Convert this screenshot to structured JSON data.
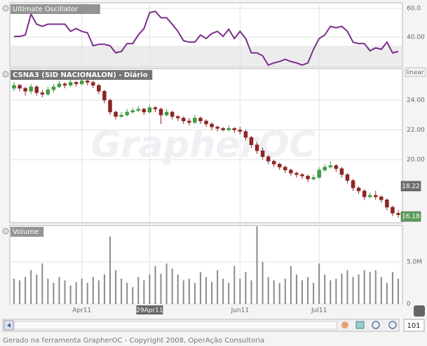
{
  "chart_data": [
    {
      "type": "line",
      "title": "Ultimate Oscillator",
      "color": "#7b2d8b",
      "ylim": [
        19.5,
        63.9
      ],
      "yticks": [
        {
          "value": 60,
          "label": "60.0"
        },
        {
          "value": 40,
          "label": "40.00"
        }
      ],
      "band": [
        19.5,
        34
      ],
      "grid": true,
      "values": [
        40.5,
        40.5,
        41.5,
        56,
        49,
        47.5,
        49,
        49,
        49,
        49,
        44,
        46,
        44,
        43,
        34,
        35,
        35,
        34,
        29,
        30,
        35.5,
        35.5,
        41.5,
        46,
        57,
        58,
        53.5,
        53.5,
        49,
        44,
        37.5,
        36.5,
        36.5,
        41.5,
        39,
        42.5,
        44,
        40.5,
        45.5,
        39,
        44,
        39,
        29,
        29,
        27,
        20.5,
        22,
        23,
        24.5,
        23,
        22,
        20.5,
        22,
        31.5,
        39,
        41.5,
        47.5,
        46.5,
        47.5,
        44,
        36.5,
        35.5,
        35.5,
        30.5,
        32.5,
        31.5,
        36.5,
        29,
        30
      ]
    },
    {
      "type": "candlestick",
      "title": "CSNA3 (SID NACIONALON) - Diário",
      "scale": "linear",
      "watermark": "GrapherOC",
      "up_color": "#3f9a3f",
      "down_color": "#8e2424",
      "ylim": [
        15.76,
        26.12
      ],
      "yticks": [
        {
          "value": 24,
          "label": "24.00"
        },
        {
          "value": 22,
          "label": "22.00"
        },
        {
          "value": 20,
          "label": "20.00"
        }
      ],
      "grid": true,
      "markers": [
        {
          "value": 18.22,
          "label": "18.22",
          "color": "#6e6e6e"
        },
        {
          "value": 16.18,
          "label": "16.18",
          "color": "#5a9e5a"
        }
      ],
      "candles": [
        [
          24.8,
          25.2,
          24.6,
          25.0
        ],
        [
          25.0,
          25.1,
          24.6,
          24.8
        ],
        [
          24.8,
          24.9,
          24.3,
          24.6
        ],
        [
          24.6,
          25.1,
          24.4,
          24.9
        ],
        [
          24.9,
          25.0,
          24.3,
          24.5
        ],
        [
          24.5,
          24.7,
          24.2,
          24.4
        ],
        [
          24.4,
          24.9,
          24.3,
          24.7
        ],
        [
          24.7,
          25.1,
          24.5,
          24.9
        ],
        [
          24.9,
          25.3,
          24.8,
          25.1
        ],
        [
          25.1,
          25.2,
          24.8,
          25.0
        ],
        [
          25.0,
          25.4,
          24.9,
          25.2
        ],
        [
          25.2,
          25.3,
          24.9,
          25.1
        ],
        [
          25.1,
          25.5,
          25.0,
          25.3
        ],
        [
          25.3,
          25.4,
          25.0,
          25.2
        ],
        [
          25.2,
          25.3,
          24.8,
          25.0
        ],
        [
          25.0,
          25.1,
          24.4,
          24.6
        ],
        [
          24.6,
          24.7,
          23.8,
          24.0
        ],
        [
          24.0,
          24.1,
          23.0,
          23.2
        ],
        [
          23.2,
          23.3,
          22.7,
          22.9
        ],
        [
          22.9,
          23.2,
          22.8,
          23.0
        ],
        [
          23.0,
          23.4,
          22.9,
          23.2
        ],
        [
          23.2,
          23.5,
          23.1,
          23.3
        ],
        [
          23.3,
          23.6,
          23.2,
          23.4
        ],
        [
          23.4,
          23.5,
          23.0,
          23.2
        ],
        [
          23.2,
          23.7,
          23.1,
          23.5
        ],
        [
          23.5,
          23.6,
          23.2,
          23.4
        ],
        [
          23.4,
          23.5,
          22.4,
          23.0
        ],
        [
          23.0,
          23.4,
          22.9,
          23.2
        ],
        [
          23.2,
          23.3,
          22.7,
          22.9
        ],
        [
          22.9,
          23.0,
          22.6,
          22.8
        ],
        [
          22.8,
          22.9,
          22.4,
          22.6
        ],
        [
          22.6,
          22.8,
          22.3,
          22.5
        ],
        [
          22.5,
          23.0,
          22.4,
          22.8
        ],
        [
          22.8,
          22.9,
          22.4,
          22.6
        ],
        [
          22.6,
          22.7,
          22.2,
          22.4
        ],
        [
          22.4,
          22.5,
          22.0,
          22.2
        ],
        [
          22.2,
          22.3,
          21.9,
          22.1
        ],
        [
          22.1,
          22.2,
          21.9,
          22.0
        ],
        [
          22.0,
          22.3,
          21.9,
          22.1
        ],
        [
          22.1,
          22.2,
          21.8,
          22.0
        ],
        [
          22.0,
          22.2,
          21.7,
          21.9
        ],
        [
          21.9,
          22.0,
          21.3,
          21.5
        ],
        [
          21.5,
          21.6,
          20.8,
          21.0
        ],
        [
          21.0,
          21.2,
          20.4,
          20.6
        ],
        [
          20.6,
          20.8,
          20.0,
          20.2
        ],
        [
          20.2,
          20.3,
          19.7,
          19.9
        ],
        [
          19.9,
          20.0,
          19.5,
          19.7
        ],
        [
          19.7,
          19.8,
          19.3,
          19.5
        ],
        [
          19.5,
          19.6,
          19.1,
          19.3
        ],
        [
          19.3,
          19.4,
          18.9,
          19.1
        ],
        [
          19.1,
          19.2,
          18.8,
          19.0
        ],
        [
          19.0,
          19.1,
          18.7,
          18.9
        ],
        [
          18.9,
          19.0,
          18.5,
          18.7
        ],
        [
          18.7,
          19.0,
          18.6,
          18.8
        ],
        [
          18.8,
          19.5,
          18.7,
          19.3
        ],
        [
          19.3,
          19.7,
          19.2,
          19.5
        ],
        [
          19.5,
          19.9,
          19.4,
          19.6
        ],
        [
          19.6,
          19.7,
          19.2,
          19.4
        ],
        [
          19.4,
          19.5,
          18.8,
          19.0
        ],
        [
          19.0,
          19.1,
          18.4,
          18.6
        ],
        [
          18.6,
          18.7,
          17.9,
          18.1
        ],
        [
          18.1,
          18.2,
          17.7,
          17.9
        ],
        [
          17.9,
          18.0,
          17.3,
          17.5
        ],
        [
          17.5,
          17.8,
          17.4,
          17.6
        ],
        [
          17.6,
          17.9,
          17.3,
          17.5
        ],
        [
          17.5,
          17.6,
          17.1,
          17.3
        ],
        [
          17.3,
          17.4,
          16.6,
          16.8
        ],
        [
          16.8,
          16.9,
          16.2,
          16.4
        ],
        [
          16.4,
          16.6,
          16.1,
          16.3
        ]
      ]
    },
    {
      "type": "bar",
      "title": "Volume",
      "color": "#8a8a8a",
      "ylim": [
        0,
        9300000
      ],
      "yticks": [
        {
          "value": 5000000,
          "label": "5.0M"
        },
        0
      ],
      "grid": true,
      "xticks": [
        {
          "value": 12,
          "label": "Apr11"
        },
        {
          "value": 24,
          "label": "29Apr11",
          "highlight": true
        },
        {
          "value": 40,
          "label": "Jun11"
        },
        {
          "value": 54,
          "label": "Jul11"
        }
      ],
      "values": [
        3000000,
        2800000,
        3200000,
        4000000,
        3500000,
        4800000,
        3000000,
        2500000,
        3200000,
        2800000,
        2200000,
        2600000,
        3000000,
        2500000,
        3200000,
        2800000,
        3500000,
        8000000,
        4000000,
        3000000,
        2500000,
        2000000,
        3200000,
        2800000,
        3500000,
        4500000,
        3600000,
        4800000,
        4200000,
        3500000,
        2800000,
        3000000,
        2500000,
        3800000,
        3200000,
        2600000,
        4000000,
        3000000,
        2500000,
        4500000,
        3000000,
        3800000,
        2800000,
        9200000,
        5000000,
        3200000,
        2800000,
        2500000,
        3000000,
        4500000,
        3500000,
        2800000,
        3200000,
        2500000,
        4800000,
        3500000,
        2800000,
        3000000,
        3600000,
        4000000,
        3200000,
        3500000,
        4000000,
        3800000,
        4000000,
        3200000,
        2500000,
        3800000,
        3000000
      ]
    }
  ],
  "scroll_value": 101,
  "footer": "Gerado na ferramenta GrapherOC - Copyright 2008, OperAção Consultoria"
}
